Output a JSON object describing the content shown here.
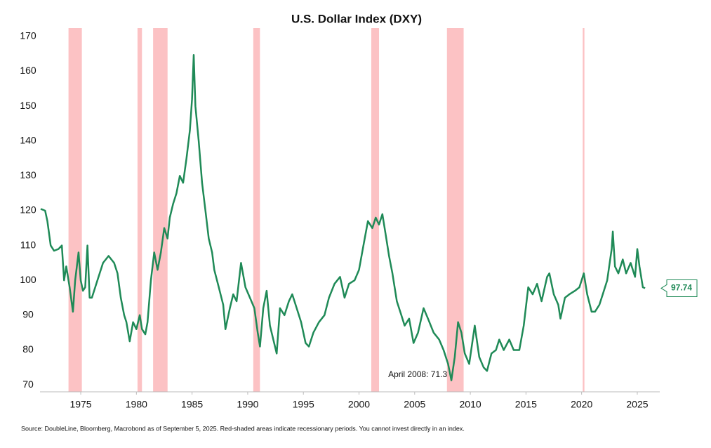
{
  "chart_data": {
    "type": "line",
    "title": "U.S. Dollar Index (DXY)",
    "note": "Source: DoubleLine, Bloomberg, Macrobond as of September 5, 2025. Red-shaded areas indicate recessionary periods. You cannot invest directly in an index.",
    "annotation": "April 2008: 71.3",
    "color": "#1f8a57",
    "shade_color": "#fcc2c4",
    "shaded_regions": [
      {
        "start": 1973.9,
        "end": 1975.1
      },
      {
        "start": 1980.1,
        "end": 1980.5
      },
      {
        "start": 1981.5,
        "end": 1982.8
      },
      {
        "start": 1990.5,
        "end": 1991.1
      },
      {
        "start": 2001.1,
        "end": 2001.8
      },
      {
        "start": 2007.9,
        "end": 2009.4
      },
      {
        "start": 2020.1,
        "end": 2020.25
      }
    ],
    "x": [
      1971.4,
      1971.8,
      1972.0,
      1972.3,
      1972.6,
      1973.0,
      1973.3,
      1973.5,
      1973.7,
      1974.0,
      1974.3,
      1974.5,
      1974.8,
      1975.0,
      1975.2,
      1975.4,
      1975.6,
      1975.8,
      1976.0,
      1976.5,
      1977.0,
      1977.5,
      1978.0,
      1978.3,
      1978.6,
      1978.9,
      1979.1,
      1979.4,
      1979.7,
      1980.0,
      1980.3,
      1980.5,
      1980.8,
      1981.0,
      1981.3,
      1981.6,
      1981.9,
      1982.2,
      1982.5,
      1982.8,
      1983.0,
      1983.3,
      1983.6,
      1983.9,
      1984.2,
      1984.5,
      1984.8,
      1985.0,
      1985.15,
      1985.3,
      1985.6,
      1985.9,
      1986.2,
      1986.5,
      1986.8,
      1987.0,
      1987.4,
      1987.8,
      1988.0,
      1988.4,
      1988.7,
      1989.0,
      1989.4,
      1989.8,
      1990.2,
      1990.6,
      1990.9,
      1991.1,
      1991.4,
      1991.7,
      1992.0,
      1992.3,
      1992.6,
      1992.9,
      1993.3,
      1993.7,
      1994.0,
      1994.4,
      1994.8,
      1995.2,
      1995.5,
      1995.9,
      1996.4,
      1996.9,
      1997.3,
      1997.8,
      1998.3,
      1998.7,
      1999.1,
      1999.6,
      2000.0,
      2000.4,
      2000.8,
      2001.2,
      2001.5,
      2001.8,
      2002.1,
      2002.4,
      2002.7,
      2003.0,
      2003.4,
      2003.8,
      2004.1,
      2004.5,
      2004.9,
      2005.3,
      2005.8,
      2006.2,
      2006.7,
      2007.2,
      2007.6,
      2008.0,
      2008.3,
      2008.6,
      2008.9,
      2009.2,
      2009.5,
      2009.9,
      2010.4,
      2010.8,
      2011.2,
      2011.5,
      2011.9,
      2012.3,
      2012.6,
      2013.0,
      2013.5,
      2013.9,
      2014.4,
      2014.8,
      2015.2,
      2015.6,
      2016.0,
      2016.4,
      2016.9,
      2017.1,
      2017.5,
      2017.9,
      2018.1,
      2018.5,
      2018.9,
      2019.4,
      2019.8,
      2020.2,
      2020.5,
      2020.9,
      2021.2,
      2021.6,
      2021.9,
      2022.3,
      2022.7,
      2022.8,
      2023.0,
      2023.3,
      2023.7,
      2024.0,
      2024.4,
      2024.8,
      2025.0,
      2025.2,
      2025.5,
      2025.7
    ],
    "values": [
      120.5,
      120,
      117,
      110,
      108.5,
      109,
      110,
      100,
      104,
      98,
      91,
      100,
      108,
      100,
      97,
      98,
      110,
      95,
      95,
      100,
      105,
      107,
      105,
      102,
      95,
      90,
      88,
      82.5,
      88,
      86,
      90,
      86,
      84.5,
      88,
      100,
      108,
      103,
      108,
      115,
      112,
      118,
      122,
      125,
      130,
      128,
      135,
      143,
      152,
      164.7,
      150,
      140,
      128,
      120,
      112,
      108,
      103,
      98,
      93,
      86,
      92,
      96,
      94,
      105,
      98,
      95,
      92,
      85,
      81,
      92,
      97,
      87,
      83,
      79,
      92,
      90,
      94,
      96,
      92,
      88,
      82,
      81,
      85,
      88,
      90,
      95,
      99,
      101,
      95,
      99,
      100,
      103,
      110,
      117,
      115,
      118,
      116,
      119,
      113,
      107,
      102,
      94,
      90,
      87,
      89,
      82,
      85,
      92,
      89,
      85,
      83,
      80,
      76,
      71.3,
      78,
      88,
      85,
      79,
      76,
      87,
      78,
      75,
      74,
      79,
      80,
      83,
      80,
      83,
      80,
      80,
      87,
      98,
      96,
      99,
      94,
      101,
      102,
      96,
      93,
      89,
      95,
      96,
      97,
      98,
      102,
      96,
      91,
      91,
      93,
      96,
      100,
      109,
      114,
      104,
      102,
      106,
      102,
      105,
      101,
      109,
      104,
      98,
      97.74
    ],
    "xlim": [
      1971.34,
      2027.02
    ],
    "xticks": [
      1975,
      1980,
      1985,
      1990,
      1995,
      2000,
      2005,
      2010,
      2015,
      2020,
      2025
    ],
    "ylim": [
      68,
      172.4
    ],
    "yticks": [
      70,
      80,
      90,
      100,
      110,
      120,
      130,
      140,
      150,
      160,
      170
    ]
  }
}
